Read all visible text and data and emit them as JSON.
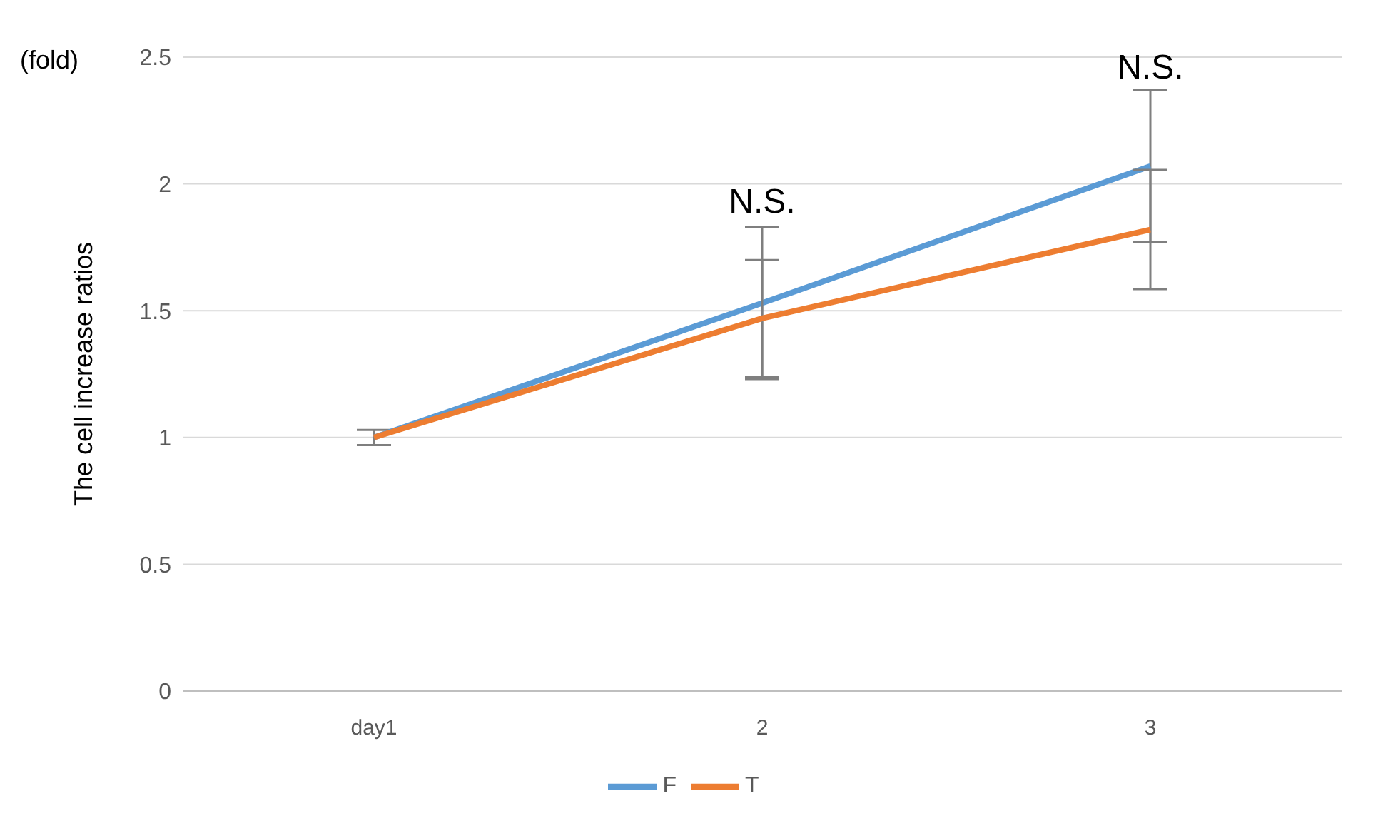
{
  "chart_data": {
    "type": "line",
    "ylabel": "The cell increase ratios",
    "categories": [
      "day1",
      "2",
      "3"
    ],
    "series": [
      {
        "name": "F",
        "color": "#5b9bd5",
        "values": [
          1,
          1.53,
          2.07
        ],
        "errors": [
          0.03,
          0.3,
          0.3
        ]
      },
      {
        "name": "T",
        "color": "#ed7d31",
        "values": [
          1,
          1.47,
          1.82
        ],
        "errors": [
          null,
          0.23,
          0.235
        ]
      }
    ],
    "ylim": [
      0,
      2.5
    ],
    "yticks": [
      0,
      0.5,
      1,
      1.5,
      2,
      2.5
    ],
    "grid": "y",
    "legend": "bottom",
    "marker": "none",
    "line_style": "solid",
    "annotations": [
      "(fold)",
      {
        "text": "N.S.",
        "x": "2",
        "y": 1.84
      },
      {
        "text": "N.S.",
        "x": "3",
        "y": 2.37
      }
    ]
  }
}
